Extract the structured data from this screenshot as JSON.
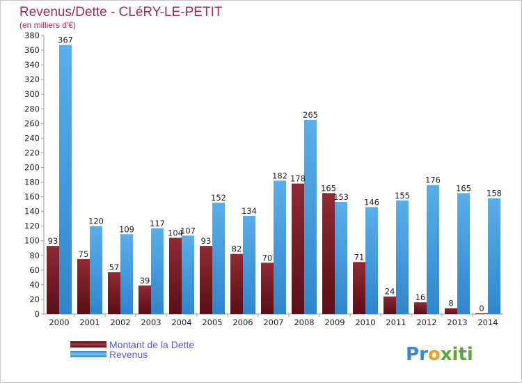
{
  "chart_data": {
    "type": "bar",
    "title": "Revenus/Dette - CLéRY-LE-PETIT",
    "subtitle": "(en milliers d'€)",
    "xlabel": "",
    "ylabel": "",
    "ylim": [
      0,
      380
    ],
    "ytick_step": 20,
    "categories": [
      "2000",
      "2001",
      "2002",
      "2003",
      "2004",
      "2005",
      "2006",
      "2007",
      "2008",
      "2009",
      "2010",
      "2011",
      "2012",
      "2013",
      "2014"
    ],
    "series": [
      {
        "name": "Montant de la Dette",
        "color": "#7a1c24",
        "values": [
          93,
          75,
          57,
          39,
          104,
          93,
          82,
          70,
          178,
          165,
          71,
          24,
          16,
          8,
          0
        ]
      },
      {
        "name": "Revenus",
        "color": "#3b9be0",
        "values": [
          367,
          120,
          109,
          117,
          107,
          152,
          134,
          182,
          265,
          153,
          146,
          155,
          176,
          165,
          158
        ]
      }
    ],
    "legend_position": "bottom-left",
    "grid": false
  },
  "watermark": {
    "text": "Proxiti",
    "colors": [
      "#3a86d0",
      "#e8a020",
      "#5aa83a"
    ]
  }
}
